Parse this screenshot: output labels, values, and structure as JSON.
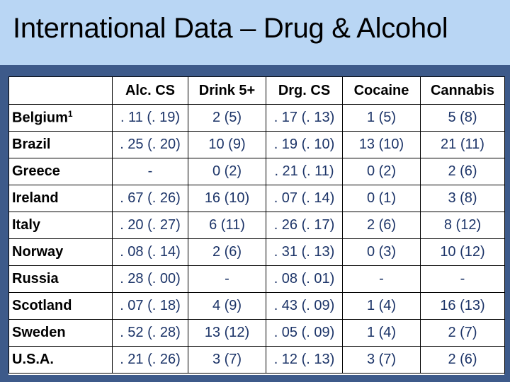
{
  "title": "International Data – Drug & Alcohol",
  "columns": [
    "",
    "Alc. CS",
    "Drink 5+",
    "Drg. CS",
    "Cocaine",
    "Cannabis"
  ],
  "rows": [
    {
      "country": "Belgium",
      "sup": "1",
      "values": [
        ". 11 (. 19)",
        "2 (5)",
        ". 17 (. 13)",
        "1 (5)",
        "5 (8)"
      ]
    },
    {
      "country": "Brazil",
      "sup": "",
      "values": [
        ". 25 (. 20)",
        "10 (9)",
        ". 19 (. 10)",
        "13 (10)",
        "21 (11)"
      ]
    },
    {
      "country": "Greece",
      "sup": "",
      "values": [
        "-",
        "0 (2)",
        ". 21 (. 11)",
        "0 (2)",
        "2 (6)"
      ]
    },
    {
      "country": "Ireland",
      "sup": "",
      "values": [
        ". 67 (. 26)",
        "16 (10)",
        ". 07 (. 14)",
        "0 (1)",
        "3 (8)"
      ]
    },
    {
      "country": "Italy",
      "sup": "",
      "values": [
        ". 20 (. 27)",
        "6 (11)",
        ". 26 (. 17)",
        "2 (6)",
        "8 (12)"
      ]
    },
    {
      "country": "Norway",
      "sup": "",
      "values": [
        ". 08 (. 14)",
        "2 (6)",
        ". 31 (. 13)",
        "0 (3)",
        "10 (12)"
      ]
    },
    {
      "country": "Russia",
      "sup": "",
      "values": [
        ". 28 (. 00)",
        "-",
        ". 08 (. 01)",
        "-",
        "-"
      ]
    },
    {
      "country": "Scotland",
      "sup": "",
      "values": [
        ". 07 (. 18)",
        "4 (9)",
        ". 43 (. 09)",
        "1 (4)",
        "16 (13)"
      ]
    },
    {
      "country": "Sweden",
      "sup": "",
      "values": [
        ". 52 (. 28)",
        "13 (12)",
        ". 05 (. 09)",
        "1 (4)",
        "2 (7)"
      ]
    },
    {
      "country": "U.S.A.",
      "sup": "",
      "values": [
        ". 21 (. 26)",
        "3 (7)",
        ". 12 (. 13)",
        "3 (7)",
        "2 (6)"
      ]
    }
  ]
}
